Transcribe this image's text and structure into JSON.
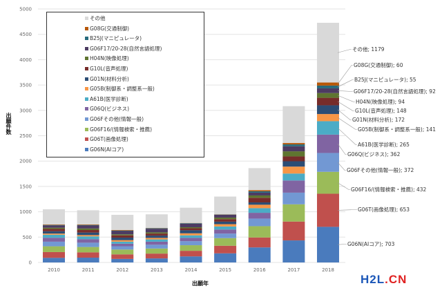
{
  "chart_data": {
    "type": "bar",
    "stacked": true,
    "title": "",
    "xlabel": "出願年",
    "ylabel": "出願件数",
    "ylim": [
      0,
      5000
    ],
    "yticks": [
      0,
      500,
      1000,
      1500,
      2000,
      2500,
      3000,
      3500,
      4000,
      4500,
      5000
    ],
    "grid": true,
    "legend_position": "top-left",
    "categories": [
      "2010",
      "2011",
      "2012",
      "2013",
      "2014",
      "2015",
      "2016",
      "2017",
      "2018"
    ],
    "series": [
      {
        "name": "G06N(AIコア)",
        "color": "#4a7bbd",
        "values": [
          91,
          95,
          70,
          80,
          120,
          180,
          297,
          435,
          703
        ]
      },
      {
        "name": "G06T(画像処理)",
        "color": "#c0504d",
        "values": [
          114,
          105,
          90,
          95,
          110,
          150,
          196,
          372,
          653
        ]
      },
      {
        "name": "G06F16/(情報検索・推薦)",
        "color": "#9bbb59",
        "values": [
          114,
          105,
          95,
          100,
          110,
          150,
          223,
          340,
          432
        ]
      },
      {
        "name": "G06Fその他(情報一般)",
        "color": "#7298d3",
        "values": [
          91,
          85,
          65,
          75,
          80,
          90,
          150,
          230,
          372
        ]
      },
      {
        "name": "G06Q(ビジネス)",
        "color": "#8064a2",
        "values": [
          78,
          70,
          50,
          60,
          65,
          80,
          114,
          240,
          362
        ]
      },
      {
        "name": "A61B(医学診断)",
        "color": "#4bacc6",
        "values": [
          59,
          55,
          40,
          45,
          50,
          60,
          91,
          137,
          265
        ]
      },
      {
        "name": "G05B(制御系・調整系一般)",
        "color": "#f79646",
        "values": [
          23,
          25,
          30,
          30,
          40,
          45,
          68,
          137,
          141
        ]
      },
      {
        "name": "G01N(材料分析)",
        "color": "#2c4d75",
        "values": [
          46,
          50,
          50,
          45,
          60,
          50,
          46,
          105,
          172
        ]
      },
      {
        "name": "G10L(音声処理)",
        "color": "#772c2a",
        "values": [
          46,
          50,
          45,
          40,
          40,
          50,
          91,
          96,
          148
        ]
      },
      {
        "name": "H04N(映像処理)",
        "color": "#5f7530",
        "values": [
          23,
          30,
          20,
          25,
          20,
          30,
          46,
          100,
          94
        ]
      },
      {
        "name": "G06F17/20-28(自然言語処理)",
        "color": "#4d3b62",
        "values": [
          46,
          60,
          65,
          70,
          70,
          55,
          55,
          100,
          92
        ]
      },
      {
        "name": "B25J(マニピュレータ)",
        "color": "#276a7c",
        "values": [
          9,
          10,
          10,
          10,
          10,
          5,
          27,
          37,
          55
        ]
      },
      {
        "name": "G08G(交通制御)",
        "color": "#b65708",
        "values": [
          9,
          10,
          10,
          5,
          5,
          5,
          23,
          27,
          60
        ]
      },
      {
        "name": "その他",
        "color": "#d9d9d9",
        "values": [
          300,
          280,
          300,
          270,
          300,
          350,
          434,
          727,
          1179
        ]
      }
    ],
    "annotations_2018": [
      "G06N(AIコア); 703",
      "G06T(画像処理); 653",
      "G06F16/(情報検索・推薦); 432",
      "G06Fその他(情報一般); 372",
      "G06Q(ビジネス); 362",
      "A61B(医学診断); 265",
      "G05B(制御系・調整系一般); 141",
      "G01N(材料分析); 172",
      "G10L(音声処理); 148",
      "H04N(映像処理); 94",
      "G06F17/20-28(自然言語処理); 92",
      "B25J(マニピュレータ); 55",
      "G08G(交通制御); 60",
      "その他; 1179"
    ]
  },
  "watermark": {
    "part1": "H2L",
    "part2": ".CN"
  }
}
